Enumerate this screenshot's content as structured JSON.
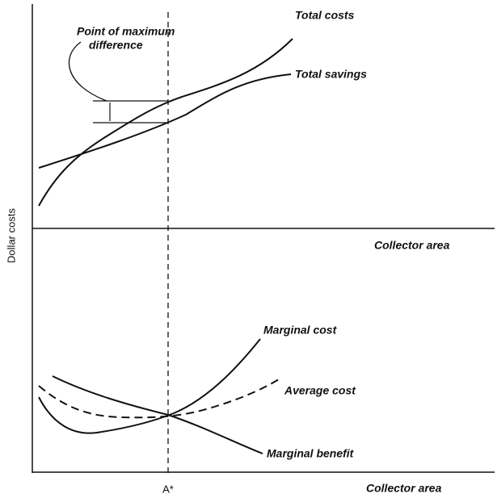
{
  "annotation": {
    "lines": [
      "Point of maximum",
      "difference"
    ]
  },
  "top_panel": {
    "curves": [
      "Total costs",
      "Total savings"
    ],
    "x_label": "Collector area"
  },
  "y_label": "Dollar costs",
  "bottom_panel": {
    "curves": [
      "Marginal cost",
      "Average cost",
      "Marginal benefit"
    ],
    "x_label": "Collector area",
    "marker": "A*"
  }
}
